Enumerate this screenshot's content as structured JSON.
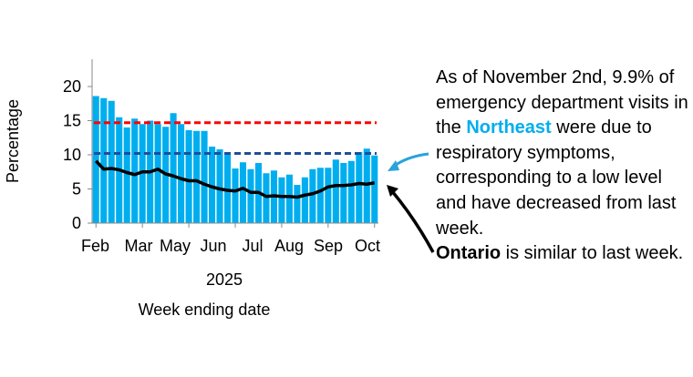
{
  "chart_data": {
    "type": "bar",
    "ylabel": "Percentage",
    "xlabel_year": "2025",
    "xlabel": "Week ending date",
    "ylim": [
      0,
      24
    ],
    "yticks": [
      0,
      5,
      10,
      15,
      20
    ],
    "month_labels": [
      "Feb",
      "Mar",
      "May",
      "Jun",
      "Jul",
      "Aug",
      "Sep",
      "Oct"
    ],
    "grid": false,
    "bar_color": "#00aeef",
    "bars": [
      18.6,
      18.3,
      17.9,
      15.5,
      14.0,
      15.3,
      14.5,
      15.0,
      14.5,
      14.1,
      16.1,
      14.5,
      13.6,
      13.5,
      13.5,
      11.2,
      10.8,
      10.0,
      8.0,
      8.9,
      7.9,
      8.8,
      7.3,
      7.7,
      6.7,
      7.1,
      5.6,
      6.7,
      7.9,
      8.1,
      8.1,
      9.3,
      8.8,
      9.1,
      10.4,
      10.9,
      9.9
    ],
    "line": {
      "color": "#000000",
      "values": [
        9.1,
        7.9,
        8.0,
        7.8,
        7.4,
        7.1,
        7.5,
        7.5,
        7.9,
        7.2,
        6.9,
        6.5,
        6.2,
        6.2,
        5.7,
        5.3,
        5.0,
        4.8,
        4.7,
        5.1,
        4.5,
        4.5,
        3.9,
        4.0,
        3.9,
        3.9,
        3.8,
        4.1,
        4.3,
        4.7,
        5.3,
        5.5,
        5.5,
        5.6,
        5.8,
        5.7,
        5.9
      ]
    },
    "thresholds": [
      {
        "value": 14.7,
        "color": "#ff0000",
        "style": "dashed"
      },
      {
        "value": 10.2,
        "color": "#1f4e9a",
        "style": "dashed"
      }
    ]
  },
  "annotation": {
    "line1": "As of November 2nd, 9.9% of emergency department visits in the ",
    "region": "Northeast",
    "line2": " were due to respiratory symptoms, corresponding to a low level and have decreased from last week.",
    "province": "Ontario",
    "line3": " is similar to last week.",
    "region_color": "#00aeef"
  }
}
